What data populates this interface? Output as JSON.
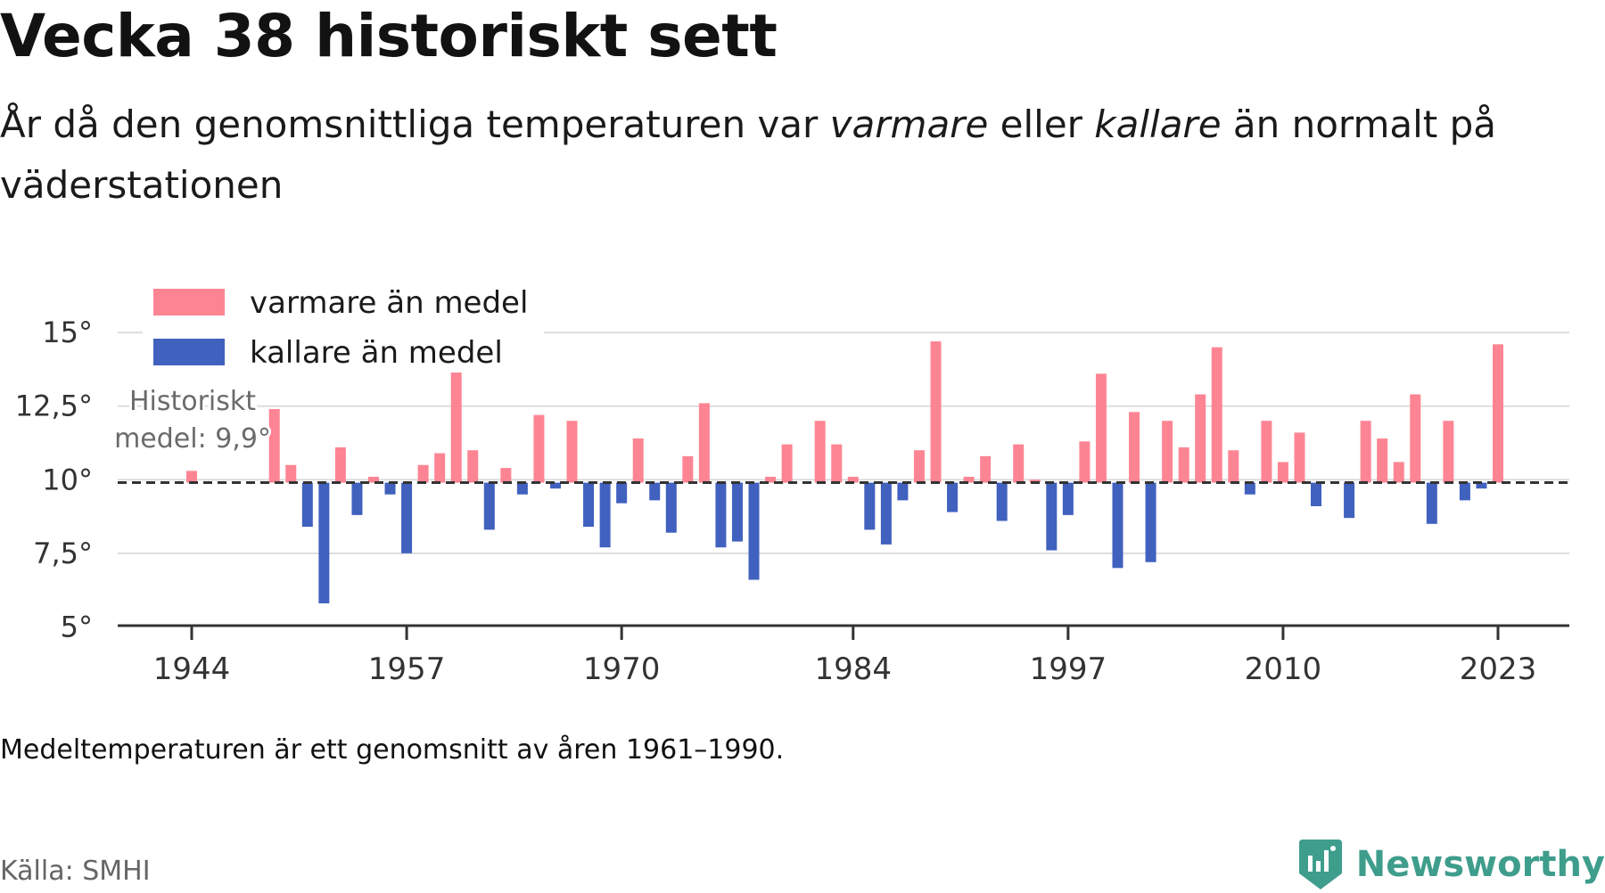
{
  "title": "Vecka 38 historiskt sett",
  "subtitle": {
    "part1": "År då den genomsnittliga temperaturen var ",
    "warm_word": "varmare",
    "part2": " eller ",
    "cold_word": "kallare",
    "part3": " än normalt på väderstationen"
  },
  "note": "Medeltemperaturen är ett genomsnitt av åren 1961–1990.",
  "source": "Källa: SMHI",
  "brand": {
    "name": "Newsworthy",
    "logo_icon": "newsworthy-logo-icon"
  },
  "colors": {
    "warm": "#fd8593",
    "cold": "#4061be",
    "grid": "#dddddd",
    "axis": "#333333",
    "brand": "#3f9d8c"
  },
  "chart_data": {
    "type": "bar",
    "baseline": 9.9,
    "baseline_label_line1": "Historiskt",
    "baseline_label_line2": "medel: 9,9°",
    "legend": [
      {
        "label": "varmare än medel",
        "color": "#fd8593"
      },
      {
        "label": "kallare än medel",
        "color": "#4061be"
      }
    ],
    "legend_position": "top-left",
    "ylim": [
      4.8,
      15.7
    ],
    "yticks": [
      5,
      7.5,
      10,
      12.5,
      15
    ],
    "ytick_labels": [
      "5°",
      "7,5°",
      "10°",
      "12,5°",
      "15°"
    ],
    "xticks": [
      1944,
      1957,
      1970,
      1984,
      1997,
      2010,
      2023
    ],
    "xtick_labels": [
      "1944",
      "1957",
      "1970",
      "1984",
      "1997",
      "2010",
      "2023"
    ],
    "grid": true,
    "years": [
      1944,
      1945,
      1946,
      1947,
      1948,
      1949,
      1950,
      1951,
      1952,
      1953,
      1954,
      1955,
      1956,
      1957,
      1958,
      1959,
      1960,
      1961,
      1962,
      1963,
      1964,
      1965,
      1966,
      1967,
      1968,
      1969,
      1970,
      1971,
      1972,
      1973,
      1974,
      1975,
      1976,
      1977,
      1978,
      1979,
      1980,
      1981,
      1982,
      1983,
      1984,
      1985,
      1986,
      1987,
      1988,
      1989,
      1990,
      1991,
      1992,
      1993,
      1994,
      1995,
      1996,
      1997,
      1998,
      1999,
      2000,
      2001,
      2002,
      2003,
      2004,
      2005,
      2006,
      2007,
      2008,
      2009,
      2010,
      2011,
      2012,
      2013,
      2014,
      2015,
      2016,
      2017,
      2018,
      2019,
      2020,
      2021,
      2022,
      2023
    ],
    "values": [
      10.3,
      null,
      null,
      null,
      null,
      12.4,
      10.5,
      8.4,
      5.8,
      11.1,
      8.8,
      10.1,
      9.5,
      7.5,
      10.5,
      10.9,
      13.8,
      11.0,
      8.3,
      10.4,
      9.5,
      12.2,
      9.7,
      12.0,
      8.4,
      7.7,
      9.2,
      11.4,
      9.3,
      8.2,
      10.8,
      12.6,
      7.7,
      7.9,
      6.6,
      10.1,
      11.2,
      null,
      12.0,
      11.2,
      10.1,
      8.3,
      7.8,
      9.3,
      11.0,
      14.7,
      8.9,
      10.1,
      10.8,
      8.6,
      11.2,
      10.0,
      7.6,
      8.8,
      11.3,
      13.6,
      7.0,
      12.3,
      7.2,
      12.0,
      11.1,
      12.9,
      14.5,
      11.0,
      9.5,
      12.0,
      10.6,
      11.6,
      9.1,
      null,
      8.7,
      12.0,
      11.4,
      10.6,
      12.9,
      8.5,
      12.0,
      9.3,
      9.7,
      14.6
    ]
  }
}
